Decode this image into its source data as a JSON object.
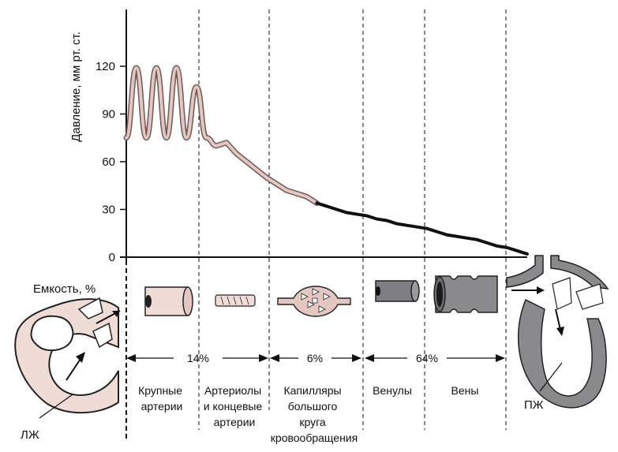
{
  "chart_data": {
    "type": "line",
    "ylabel": "Давление, мм рт. ст.",
    "yticks": [
      0,
      30,
      60,
      90,
      120
    ],
    "ylim": [
      0,
      120
    ],
    "grid": false,
    "series": [
      {
        "x": [
          0,
          1,
          2,
          3,
          4,
          5,
          6,
          7,
          8,
          9,
          10,
          11,
          12,
          13,
          14,
          15,
          16,
          17,
          18,
          19,
          20,
          21,
          22,
          23,
          24,
          25,
          26,
          27,
          28,
          29,
          30,
          31,
          32,
          33,
          34,
          35,
          36,
          37,
          38,
          39,
          40
        ],
        "y": [
          75,
          119,
          75,
          119,
          75,
          119,
          75,
          107,
          75,
          70,
          72,
          65,
          60,
          55,
          50,
          46,
          42,
          40,
          38,
          34,
          32,
          30,
          28,
          27,
          26,
          24,
          23,
          21,
          20,
          19,
          18,
          16,
          14,
          13,
          12,
          11,
          9,
          7,
          6,
          4,
          2
        ]
      }
    ]
  },
  "capacity_label": "Емкость, %",
  "percent_labels": [
    "14%",
    "6%",
    "64%"
  ],
  "segments": [
    {
      "lines": [
        "Крупные",
        "артерии"
      ]
    },
    {
      "lines": [
        "Артериолы",
        "и концевые",
        "артерии"
      ]
    },
    {
      "lines": [
        "Капилляры",
        "большого",
        "круга",
        "кровообращения"
      ]
    },
    {
      "lines": [
        "Венулы"
      ]
    },
    {
      "lines": [
        "Вены"
      ]
    }
  ],
  "heart_left_label": "ЛЖ",
  "heart_right_label": "ПЖ",
  "colors": {
    "artery": "#e3c7c0",
    "vein": "#8a8a8d",
    "line": "#111111"
  }
}
